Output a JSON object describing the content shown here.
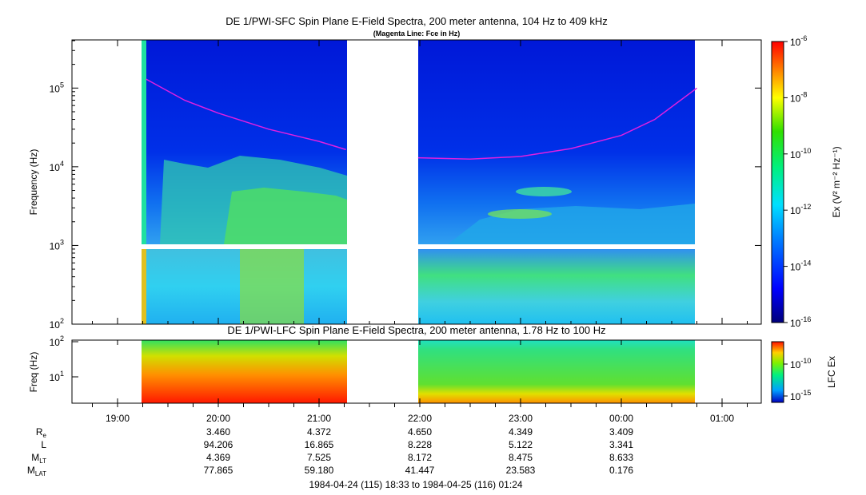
{
  "chart_data": {
    "type": "heatmap",
    "time_range": {
      "start": "1984-04-24 18:33",
      "end": "1984-04-25 01:24",
      "x_ticks": [
        "19:00",
        "20:00",
        "21:00",
        "22:00",
        "23:00",
        "00:00",
        "01:00"
      ]
    },
    "panels": [
      {
        "name": "sfc",
        "title": "DE 1/PWI-SFC  Spin Plane E-Field Spectra, 200 meter antenna, 104 Hz to 409 kHz",
        "subtitle": "(Magenta Line: Fce in Hz)",
        "ylabel": "Frequency (Hz)",
        "yscale": "log",
        "ylim": [
          100,
          409000
        ],
        "y_ticks": [
          {
            "base": "10",
            "exp": "2",
            "value": 100
          },
          {
            "base": "10",
            "exp": "3",
            "value": 1000
          },
          {
            "base": "10",
            "exp": "4",
            "value": 10000
          },
          {
            "base": "10",
            "exp": "5",
            "value": 100000
          }
        ],
        "data_coverage": [
          {
            "start": "19:17",
            "end": "21:16"
          },
          {
            "start": "21:59",
            "end": "00:45"
          }
        ],
        "fce_line": {
          "color": "#e020e0",
          "segments": [
            [
              [
                "19:17",
                130000
              ],
              [
                "19:40",
                70000
              ],
              [
                "20:00",
                48000
              ],
              [
                "20:30",
                30000
              ],
              [
                "21:00",
                21000
              ],
              [
                "21:16",
                16500
              ]
            ],
            [
              [
                "21:59",
                13000
              ],
              [
                "22:30",
                12500
              ],
              [
                "23:00",
                13500
              ],
              [
                "23:30",
                17000
              ],
              [
                "00:00",
                25000
              ],
              [
                "00:20",
                40000
              ],
              [
                "00:45",
                100000
              ]
            ]
          ]
        },
        "colorbar": {
          "label": "Ex (V² m⁻² Hz⁻¹)",
          "scale": "log",
          "range": [
            1e-16,
            1e-06
          ],
          "ticks": [
            {
              "base": "10",
              "exp": "-6"
            },
            {
              "base": "10",
              "exp": "-8"
            },
            {
              "base": "10",
              "exp": "-10"
            },
            {
              "base": "10",
              "exp": "-12"
            },
            {
              "base": "10",
              "exp": "-14"
            },
            {
              "base": "10",
              "exp": "-16"
            }
          ]
        }
      },
      {
        "name": "lfc",
        "title": "DE 1/PWI-LFC  Spin Plane E-Field Spectra, 200 meter antenna, 1.78 Hz to 100 Hz",
        "ylabel": "Freq (Hz)",
        "yscale": "log",
        "ylim": [
          1.78,
          100
        ],
        "y_ticks": [
          {
            "base": "10",
            "exp": "2",
            "value": 100
          },
          {
            "base": "10",
            "exp": "1",
            "value": 10
          }
        ],
        "data_coverage": [
          {
            "start": "19:17",
            "end": "21:16"
          },
          {
            "start": "21:59",
            "end": "00:45"
          }
        ],
        "colorbar": {
          "label": "LFC Ex",
          "scale": "log",
          "ticks": [
            {
              "base": "10",
              "exp": "-10"
            },
            {
              "base": "10",
              "exp": "-15"
            }
          ]
        }
      }
    ],
    "ephemeris": {
      "rows": [
        {
          "label": "R",
          "sub": "e",
          "values": [
            "3.460",
            "4.372",
            "4.650",
            "4.349",
            "3.409"
          ]
        },
        {
          "label": "L",
          "sub": "",
          "values": [
            "94.206",
            "16.865",
            "8.228",
            "5.122",
            "3.341"
          ]
        },
        {
          "label": "M",
          "sub": "LT",
          "values": [
            "4.369",
            "7.525",
            "8.172",
            "8.475",
            "8.633"
          ]
        },
        {
          "label": "M",
          "sub": "LAT",
          "values": [
            "77.865",
            "59.180",
            "41.447",
            "23.583",
            "0.176"
          ]
        }
      ],
      "times": [
        "20:00",
        "21:00",
        "22:00",
        "23:00",
        "00:00"
      ]
    },
    "footer": "1984-04-24 (115) 18:33 to 1984-04-25 (116) 01:24"
  }
}
